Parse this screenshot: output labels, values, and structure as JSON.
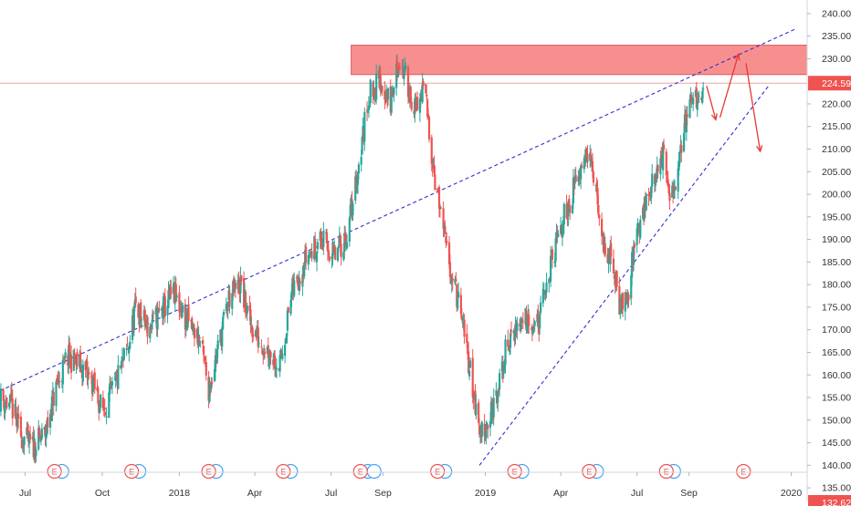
{
  "chart_data": {
    "type": "candlestick",
    "grid": false,
    "colors": {
      "up": "#26a69a",
      "down": "#ef5350",
      "trendline": "#2f2fd1",
      "resistance_zone": "#f77b7b",
      "price_line": "#f7a0a0",
      "arrow": "#e53935",
      "event_e": "#ef5350",
      "event_dividend": "#42a5f5",
      "axis_text": "#333333",
      "last_price_badge": "#ef5350"
    },
    "y_axis": {
      "min": 132,
      "max": 243,
      "ticks": [
        135.0,
        140.0,
        145.0,
        150.0,
        155.0,
        160.0,
        165.0,
        170.0,
        175.0,
        180.0,
        185.0,
        190.0,
        195.0,
        200.0,
        205.0,
        210.0,
        215.0,
        220.0,
        230.0,
        235.0,
        240.0
      ],
      "tick_labels": [
        "135.00",
        "140.00",
        "145.00",
        "150.00",
        "155.00",
        "160.00",
        "165.00",
        "170.00",
        "175.00",
        "180.00",
        "185.00",
        "190.00",
        "195.00",
        "200.00",
        "205.00",
        "210.00",
        "215.00",
        "220.00",
        "230.00",
        "235.00",
        "240.00"
      ]
    },
    "last_price": {
      "value": 224.59,
      "label": "224.59"
    },
    "bottom_badge": {
      "label": "132.62"
    },
    "x_axis": {
      "start": "2017-06-01",
      "end": "2020-01-20",
      "ticks": [
        {
          "date": "2017-07-01",
          "label": "Jul"
        },
        {
          "date": "2017-10-01",
          "label": "Oct"
        },
        {
          "date": "2018-01-01",
          "label": "2018"
        },
        {
          "date": "2018-04-01",
          "label": "Apr"
        },
        {
          "date": "2018-07-01",
          "label": "Jul"
        },
        {
          "date": "2018-09-01",
          "label": "Sep"
        },
        {
          "date": "2019-01-01",
          "label": "2019"
        },
        {
          "date": "2019-04-01",
          "label": "Apr"
        },
        {
          "date": "2019-07-01",
          "label": "Jul"
        },
        {
          "date": "2019-09-01",
          "label": "Sep"
        },
        {
          "date": "2020-01-01",
          "label": "2020"
        }
      ]
    },
    "price_path": [
      [
        "2017-06-01",
        155
      ],
      [
        "2017-06-15",
        153
      ],
      [
        "2017-06-25",
        147
      ],
      [
        "2017-07-10",
        144
      ],
      [
        "2017-07-25",
        147
      ],
      [
        "2017-08-05",
        156
      ],
      [
        "2017-08-20",
        164
      ],
      [
        "2017-09-05",
        162
      ],
      [
        "2017-09-20",
        158
      ],
      [
        "2017-10-01",
        152
      ],
      [
        "2017-10-15",
        157
      ],
      [
        "2017-11-01",
        166
      ],
      [
        "2017-11-10",
        175
      ],
      [
        "2017-11-25",
        170
      ],
      [
        "2017-12-10",
        174
      ],
      [
        "2017-12-25",
        178
      ],
      [
        "2018-01-10",
        172
      ],
      [
        "2018-01-25",
        168
      ],
      [
        "2018-02-05",
        157
      ],
      [
        "2018-02-15",
        165
      ],
      [
        "2018-03-01",
        177
      ],
      [
        "2018-03-15",
        180
      ],
      [
        "2018-03-25",
        172
      ],
      [
        "2018-04-05",
        168
      ],
      [
        "2018-04-20",
        165
      ],
      [
        "2018-05-01",
        162
      ],
      [
        "2018-05-15",
        178
      ],
      [
        "2018-06-01",
        186
      ],
      [
        "2018-06-20",
        190
      ],
      [
        "2018-07-05",
        186
      ],
      [
        "2018-07-20",
        191
      ],
      [
        "2018-08-01",
        204
      ],
      [
        "2018-08-15",
        222
      ],
      [
        "2018-08-28",
        225
      ],
      [
        "2018-09-10",
        220
      ],
      [
        "2018-09-20",
        230
      ],
      [
        "2018-10-01",
        224
      ],
      [
        "2018-10-10",
        218
      ],
      [
        "2018-10-20",
        224
      ],
      [
        "2018-11-01",
        205
      ],
      [
        "2018-11-15",
        188
      ],
      [
        "2018-12-01",
        175
      ],
      [
        "2018-12-15",
        160
      ],
      [
        "2018-12-25",
        147
      ],
      [
        "2019-01-05",
        150
      ],
      [
        "2019-01-15",
        155
      ],
      [
        "2019-01-25",
        165
      ],
      [
        "2019-02-05",
        170
      ],
      [
        "2019-02-20",
        173
      ],
      [
        "2019-03-05",
        171
      ],
      [
        "2019-03-20",
        184
      ],
      [
        "2019-04-05",
        195
      ],
      [
        "2019-04-20",
        203
      ],
      [
        "2019-05-01",
        211
      ],
      [
        "2019-05-10",
        204
      ],
      [
        "2019-05-20",
        190
      ],
      [
        "2019-06-01",
        185
      ],
      [
        "2019-06-10",
        176
      ],
      [
        "2019-06-20",
        178
      ],
      [
        "2019-07-01",
        192
      ],
      [
        "2019-07-15",
        200
      ],
      [
        "2019-08-01",
        209
      ],
      [
        "2019-08-10",
        197
      ],
      [
        "2019-08-20",
        207
      ],
      [
        "2019-09-01",
        222
      ],
      [
        "2019-09-10",
        220
      ],
      [
        "2019-09-18",
        224.59
      ]
    ],
    "annotations": {
      "resistance_zone": {
        "from": "2018-07-25",
        "to": "2020-01-20",
        "low": 226.5,
        "high": 233
      },
      "upper_trendline": [
        [
          "2017-06-01",
          156.5
        ],
        [
          "2020-01-05",
          236.5
        ]
      ],
      "lower_trendline": [
        [
          "2018-12-25",
          140
        ],
        [
          "2019-12-05",
          224
        ]
      ],
      "forecast_arrows": [
        [
          [
            "2019-09-22",
            224
          ],
          [
            "2019-10-03",
            216.5
          ]
        ],
        [
          [
            "2019-10-08",
            217
          ],
          [
            "2019-10-30",
            231
          ]
        ],
        [
          [
            "2019-11-08",
            229
          ],
          [
            "2019-11-25",
            209.5
          ]
        ]
      ]
    },
    "events": [
      {
        "date": "2017-08-05",
        "kind": "E",
        "dividend": true
      },
      {
        "date": "2017-11-05",
        "kind": "E",
        "dividend": true
      },
      {
        "date": "2018-02-05",
        "kind": "E",
        "dividend": true
      },
      {
        "date": "2018-05-05",
        "kind": "E",
        "dividend": true
      },
      {
        "date": "2018-08-05",
        "kind": "E",
        "dividend": true,
        "double_dividend": true
      },
      {
        "date": "2018-11-05",
        "kind": "E",
        "dividend": true
      },
      {
        "date": "2019-02-05",
        "kind": "E",
        "dividend": true
      },
      {
        "date": "2019-05-05",
        "kind": "E",
        "dividend": true
      },
      {
        "date": "2019-08-05",
        "kind": "E",
        "dividend": true
      },
      {
        "date": "2019-11-05",
        "kind": "E",
        "dividend": false
      }
    ],
    "event_label": "E"
  }
}
